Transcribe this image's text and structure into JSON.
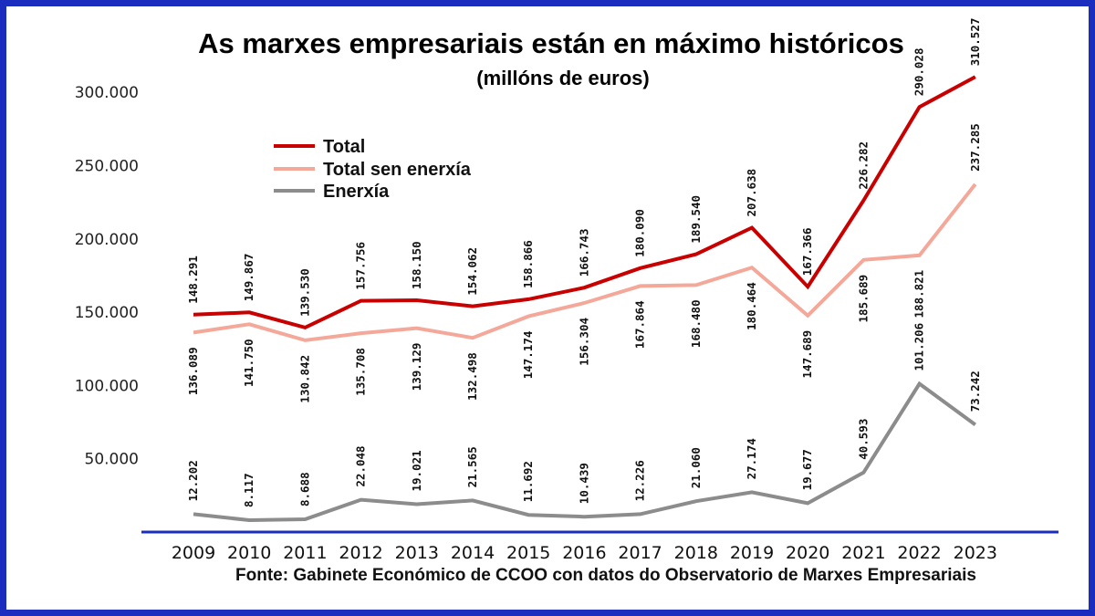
{
  "chart_data": {
    "type": "line",
    "title": "As marxes empresariais están en máximo históricos",
    "subtitle": "(millóns de euros)",
    "source": "Fonte: Gabinete Económico de CCOO con datos do Observatorio de Marxes Empresariais",
    "categories": [
      "2009",
      "2010",
      "2011",
      "2012",
      "2013",
      "2014",
      "2015",
      "2016",
      "2017",
      "2018",
      "2019",
      "2020",
      "2021",
      "2022",
      "2023"
    ],
    "ylim": [
      0,
      310000
    ],
    "yticks": [
      50000,
      100000,
      150000,
      200000,
      250000,
      300000
    ],
    "ytick_labels": [
      "50.000",
      "100.000",
      "150.000",
      "200.000",
      "250.000",
      "300.000"
    ],
    "grid": false,
    "legend_position": "top-left",
    "series": [
      {
        "name": "Total",
        "color": "#c80000",
        "values": [
          148291,
          149867,
          139530,
          157756,
          158150,
          154062,
          158866,
          166743,
          180090,
          189540,
          207638,
          167366,
          226282,
          290028,
          310527
        ],
        "labels": [
          "148.291",
          "149.867",
          "139.530",
          "157.756",
          "158.150",
          "154.062",
          "158.866",
          "166.743",
          "180.090",
          "189.540",
          "207.638",
          "167.366",
          "226.282",
          "290.028",
          "310.527"
        ]
      },
      {
        "name": "Total sen enerxía",
        "color": "#f4a89a",
        "values": [
          136089,
          141750,
          130842,
          135708,
          139129,
          132498,
          147174,
          156304,
          167864,
          168480,
          180464,
          147689,
          185689,
          188821,
          237285
        ],
        "labels": [
          "136.089",
          "141.750",
          "130.842",
          "135.708",
          "139.129",
          "132.498",
          "147.174",
          "156.304",
          "167.864",
          "168.480",
          "180.464",
          "147.689",
          "185.689",
          "188.821",
          "237.285"
        ]
      },
      {
        "name": "Enerxía",
        "color": "#8c8c8c",
        "values": [
          12202,
          8117,
          8688,
          22048,
          19021,
          21565,
          11692,
          10439,
          12226,
          21060,
          27174,
          19677,
          40593,
          101206,
          73242
        ],
        "labels": [
          "12.202",
          "8.117",
          "8.688",
          "22.048",
          "19.021",
          "21.565",
          "11.692",
          "10.439",
          "12.226",
          "21.060",
          "27.174",
          "19.677",
          "40.593",
          "101.206",
          "73.242"
        ]
      }
    ]
  }
}
